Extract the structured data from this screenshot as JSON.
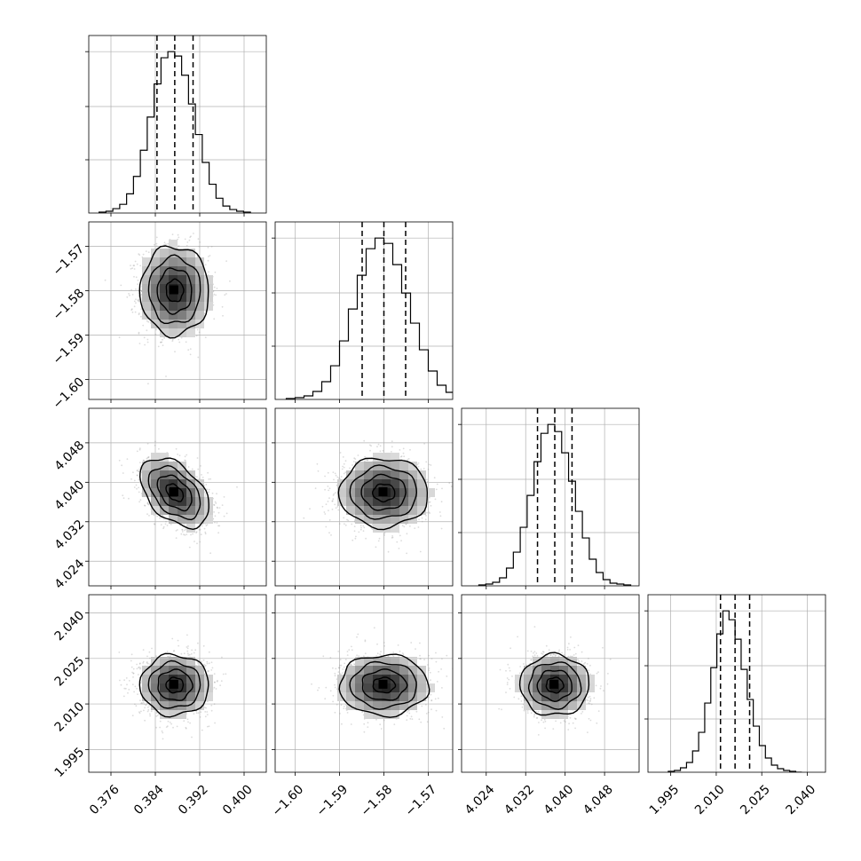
{
  "chart_data": {
    "type": "corner",
    "description_params": 4,
    "grid": true,
    "colors": {
      "hist": "#000000",
      "contour": "#000000",
      "points": "#9a9a9a",
      "grid": "#b0b0b0"
    },
    "params": [
      {
        "name": "",
        "range": [
          0.372,
          0.404
        ],
        "ticks": [
          0.376,
          0.384,
          0.392,
          0.4
        ],
        "tick_labels": [
          "0.376",
          "0.384",
          "0.392",
          "0.400"
        ],
        "center": 0.3875,
        "sigma": 0.0031,
        "quantiles": [
          0.3843,
          0.3875,
          0.3908
        ]
      },
      {
        "name": "",
        "range": [
          -1.6045,
          -1.5645
        ],
        "ticks": [
          -1.6,
          -1.59,
          -1.58,
          -1.57
        ],
        "tick_labels": [
          "−1.60",
          "−1.59",
          "−1.58",
          "−1.57"
        ],
        "center": -1.58,
        "sigma": 0.005,
        "quantiles": [
          -1.5849,
          -1.58,
          -1.5751
        ]
      },
      {
        "name": "",
        "range": [
          4.019,
          4.055
        ],
        "ticks": [
          4.024,
          4.032,
          4.04,
          4.048
        ],
        "tick_labels": [
          "4.024",
          "4.032",
          "4.040",
          "4.048"
        ],
        "center": 4.0379,
        "sigma": 0.0035,
        "quantiles": [
          4.0344,
          4.0379,
          4.0414
        ]
      },
      {
        "name": "",
        "range": [
          1.9875,
          2.046
        ],
        "ticks": [
          1.995,
          2.01,
          2.025,
          2.04
        ],
        "tick_labels": [
          "1.995",
          "2.010",
          "2.025",
          "2.040"
        ],
        "center": 2.0162,
        "sigma": 0.005,
        "quantiles": [
          2.0114,
          2.0162,
          2.021
        ]
      }
    ],
    "correlations": [
      [
        1.0,
        0.0,
        -0.45,
        0.0
      ],
      [
        0.0,
        1.0,
        0.0,
        0.0
      ],
      [
        -0.45,
        0.0,
        1.0,
        0.0
      ],
      [
        0.0,
        0.0,
        0.0,
        1.0
      ]
    ],
    "histograms": [
      {
        "param": 0,
        "counts": [
          1,
          2,
          5,
          10,
          22,
          42,
          72,
          110,
          148,
          178,
          185,
          180,
          158,
          125,
          90,
          58,
          33,
          17,
          8,
          4,
          2,
          1
        ]
      },
      {
        "param": 1,
        "counts": [
          1,
          2,
          4,
          9,
          20,
          38,
          66,
          102,
          140,
          170,
          182,
          176,
          152,
          120,
          86,
          56,
          32,
          16,
          8,
          4,
          2,
          1
        ]
      },
      {
        "param": 2,
        "counts": [
          1,
          2,
          4,
          9,
          20,
          38,
          66,
          102,
          140,
          172,
          182,
          174,
          150,
          118,
          84,
          54,
          30,
          15,
          7,
          3,
          2,
          1
        ]
      },
      {
        "param": 3,
        "counts": [
          1,
          2,
          5,
          11,
          24,
          45,
          78,
          118,
          156,
          182,
          172,
          150,
          116,
          82,
          52,
          30,
          16,
          8,
          4,
          2,
          1,
          0
        ]
      }
    ]
  }
}
